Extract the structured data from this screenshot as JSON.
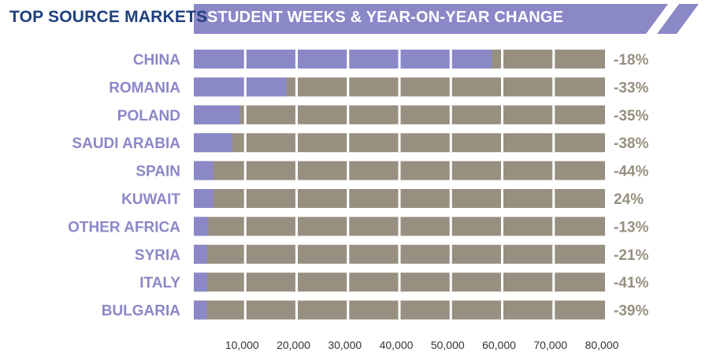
{
  "header": {
    "left_title": "TOP SOURCE MARKETS",
    "banner_title": "STUDENT WEEKS & YEAR-ON-YEAR CHANGE"
  },
  "colors": {
    "title_blue": "#1f3f7f",
    "banner": "#8b88c8",
    "bar_fill": "#8b88c8",
    "bar_track": "#979081",
    "category_label": "#8b88c8",
    "change_label": "#979081"
  },
  "chart_data": {
    "type": "bar",
    "orientation": "horizontal",
    "title": "STUDENT WEEKS & YEAR-ON-YEAR CHANGE",
    "categories": [
      "CHINA",
      "ROMANIA",
      "POLAND",
      "SAUDI ARABIA",
      "SPAIN",
      "KUWAIT",
      "OTHER AFRICA",
      "SYRIA",
      "ITALY",
      "BULGARIA"
    ],
    "values": [
      58000,
      18000,
      9000,
      7500,
      3800,
      3800,
      2800,
      2600,
      2600,
      2500
    ],
    "change_labels": [
      "-18%",
      "-33%",
      "-35%",
      "-38%",
      "-44%",
      "24%",
      "-13%",
      "-21%",
      "-41%",
      "-39%"
    ],
    "x_ticks": [
      10000,
      20000,
      30000,
      40000,
      50000,
      60000,
      70000,
      80000
    ],
    "x_tick_labels": [
      "10,000",
      "20,000",
      "30,000",
      "40,000",
      "50,000",
      "60,000",
      "70,000",
      "80,000"
    ],
    "xlim": [
      0,
      80000
    ],
    "grid": true,
    "legend": "none"
  }
}
